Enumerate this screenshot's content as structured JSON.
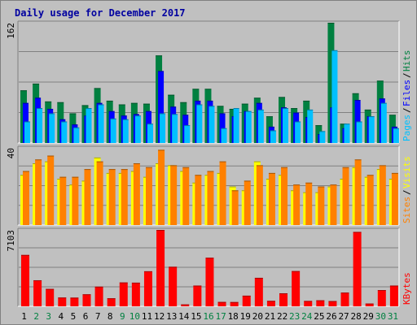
{
  "chart_data": [
    {
      "type": "bar",
      "title": "Daily usage for December 2017",
      "ylabel_top": "162",
      "legend": [
        {
          "label": "Pages",
          "color": "#00c0ff"
        },
        {
          "label": "Files",
          "color": "#0000ff"
        },
        {
          "label": "Hits",
          "color": "#008040"
        }
      ],
      "categories": [
        "1",
        "2",
        "3",
        "4",
        "5",
        "6",
        "7",
        "8",
        "9",
        "10",
        "11",
        "12",
        "13",
        "14",
        "15",
        "16",
        "17",
        "18",
        "19",
        "20",
        "21",
        "22",
        "23",
        "24",
        "25",
        "26",
        "27",
        "28",
        "29",
        "30",
        "31"
      ],
      "weekend_days": [
        "2",
        "3",
        "9",
        "10",
        "16",
        "17",
        "23",
        "24",
        "30",
        "31"
      ],
      "ymax": 162,
      "series": [
        {
          "name": "Hits",
          "color": "#008040",
          "values": [
            71,
            80,
            56,
            55,
            40,
            51,
            74,
            57,
            52,
            54,
            53,
            118,
            65,
            55,
            73,
            73,
            50,
            46,
            53,
            61,
            36,
            62,
            47,
            57,
            24,
            162,
            26,
            67,
            45,
            84,
            38
          ]
        },
        {
          "name": "Files",
          "color": "#0000ff",
          "values": [
            54,
            61,
            46,
            32,
            25,
            37,
            54,
            43,
            37,
            39,
            43,
            97,
            49,
            38,
            57,
            57,
            40,
            36,
            43,
            54,
            22,
            48,
            41,
            35,
            12,
            48,
            20,
            58,
            36,
            60,
            22
          ]
        },
        {
          "name": "Pages",
          "color": "#00c0ff",
          "values": [
            29,
            47,
            40,
            29,
            21,
            47,
            52,
            33,
            32,
            37,
            26,
            40,
            39,
            24,
            52,
            50,
            20,
            47,
            43,
            45,
            17,
            47,
            29,
            45,
            16,
            125,
            26,
            29,
            36,
            54,
            20
          ]
        }
      ]
    },
    {
      "type": "bar",
      "ylabel_top": "40",
      "legend": [
        {
          "label": "Sites",
          "color": "#ff8000"
        },
        {
          "label": "Visits",
          "color": "#ffff00"
        }
      ],
      "ymax": 40,
      "series": [
        {
          "name": "Sites",
          "color": "#ff8000",
          "values": [
            28,
            34,
            36,
            25,
            25,
            29,
            33,
            29,
            29,
            32,
            30,
            39,
            31,
            30,
            26,
            28,
            33,
            18,
            23,
            31,
            27,
            30,
            21,
            22,
            20,
            21,
            30,
            34,
            26,
            31,
            27
          ]
        },
        {
          "name": "Visits",
          "color": "#ffff00",
          "values": [
            26,
            32,
            33,
            24,
            21,
            23,
            35,
            27,
            27,
            28,
            25,
            32,
            31,
            28,
            22,
            26,
            27,
            20,
            18,
            33,
            24,
            26,
            18,
            17,
            17,
            20,
            24,
            30,
            25,
            29,
            24
          ]
        }
      ]
    },
    {
      "type": "bar",
      "ylabel_top": "7103",
      "legend": [
        {
          "label": "KBytes",
          "color": "#ff0000"
        }
      ],
      "ymax": 7103,
      "series": [
        {
          "name": "KBytes",
          "color": "#ff0000",
          "values": [
            4780,
            2420,
            1620,
            820,
            810,
            1120,
            1830,
            750,
            2220,
            2200,
            3260,
            7103,
            3680,
            180,
            1930,
            4520,
            410,
            400,
            990,
            2650,
            510,
            1210,
            3280,
            500,
            560,
            490,
            1280,
            6920,
            260,
            1510,
            1930
          ]
        }
      ]
    }
  ]
}
